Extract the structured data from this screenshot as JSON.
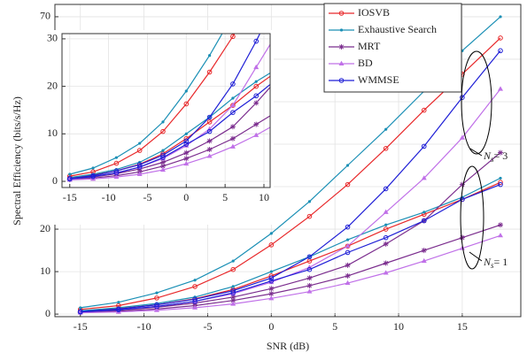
{
  "chart_data": {
    "type": "line",
    "x_label": "SNR (dB)",
    "y_label": "Spectral Efficiency (bits/s/Hz)",
    "x": [
      -15,
      -12,
      -9,
      -6,
      -3,
      0,
      3,
      6,
      9,
      12,
      15,
      18
    ],
    "xlim": [
      -17,
      19.6
    ],
    "ylim": [
      -0.6,
      72.9
    ],
    "xticks": [
      -15,
      -10,
      -5,
      0,
      5,
      10,
      15
    ],
    "yticks": [
      0,
      10,
      20,
      30,
      40,
      50,
      60,
      70
    ],
    "grid": true,
    "series": [
      {
        "name": "IOSVB",
        "color": "#e8282a",
        "marker": "circle",
        "values": [
          1.1,
          2,
          3.8,
          6.5,
          10.5,
          16.3,
          23,
          30.5,
          39,
          48,
          56.5,
          65
        ],
        "values_ns1": [
          0.7,
          1.3,
          2.2,
          3.6,
          5.8,
          9,
          12.5,
          16,
          20,
          23.5,
          27,
          31
        ]
      },
      {
        "name": "Exhaustive Search",
        "color": "#1a8fb5",
        "marker": "dot",
        "values": [
          1.5,
          2.8,
          5,
          8,
          12.5,
          19,
          26.5,
          35,
          43.5,
          52.5,
          62,
          70
        ],
        "values_ns1": [
          0.8,
          1.5,
          2.5,
          4,
          6.5,
          10,
          13.5,
          17.5,
          21,
          24,
          27.5,
          32
        ]
      },
      {
        "name": "MRT",
        "color": "#7b2d8e",
        "marker": "asterisk",
        "values": [
          0.5,
          0.9,
          1.6,
          2.6,
          4,
          6,
          8.5,
          11.5,
          16.5,
          22,
          30.5,
          38
        ],
        "values_ns1": [
          0.4,
          0.7,
          1.2,
          2,
          3.2,
          4.8,
          6.7,
          9,
          12,
          15,
          18,
          21
        ]
      },
      {
        "name": "BD",
        "color": "#c070e8",
        "marker": "triangle",
        "values": [
          0.5,
          1,
          1.8,
          3,
          4.8,
          7.5,
          11,
          16,
          24,
          32,
          41.5,
          53
        ],
        "values_ns1": [
          0.3,
          0.5,
          0.9,
          1.5,
          2.4,
          3.7,
          5.3,
          7.3,
          9.7,
          12.5,
          15.5,
          18.5
        ]
      },
      {
        "name": "WMMSE",
        "color": "#1f1fd6",
        "marker": "circle",
        "values": [
          0.6,
          1.2,
          2.2,
          3.5,
          5.5,
          8.5,
          13.5,
          20.5,
          29.5,
          39.5,
          51,
          62
        ],
        "values_ns1": [
          0.5,
          1,
          1.8,
          3,
          5,
          7.8,
          10.5,
          14.5,
          18,
          22,
          27,
          30.5
        ]
      }
    ],
    "inset": {
      "xlim": [
        -16,
        10.8
      ],
      "ylim": [
        -1.3,
        31.1
      ],
      "xticks": [
        -15,
        -10,
        -5,
        0,
        5,
        10
      ],
      "yticks": [
        0,
        10,
        20,
        30
      ]
    },
    "annotations": [
      {
        "symbol": "N",
        "subscript": "s",
        "label": "= 3"
      },
      {
        "symbol": "N",
        "subscript": "s",
        "label": "= 1"
      }
    ]
  }
}
